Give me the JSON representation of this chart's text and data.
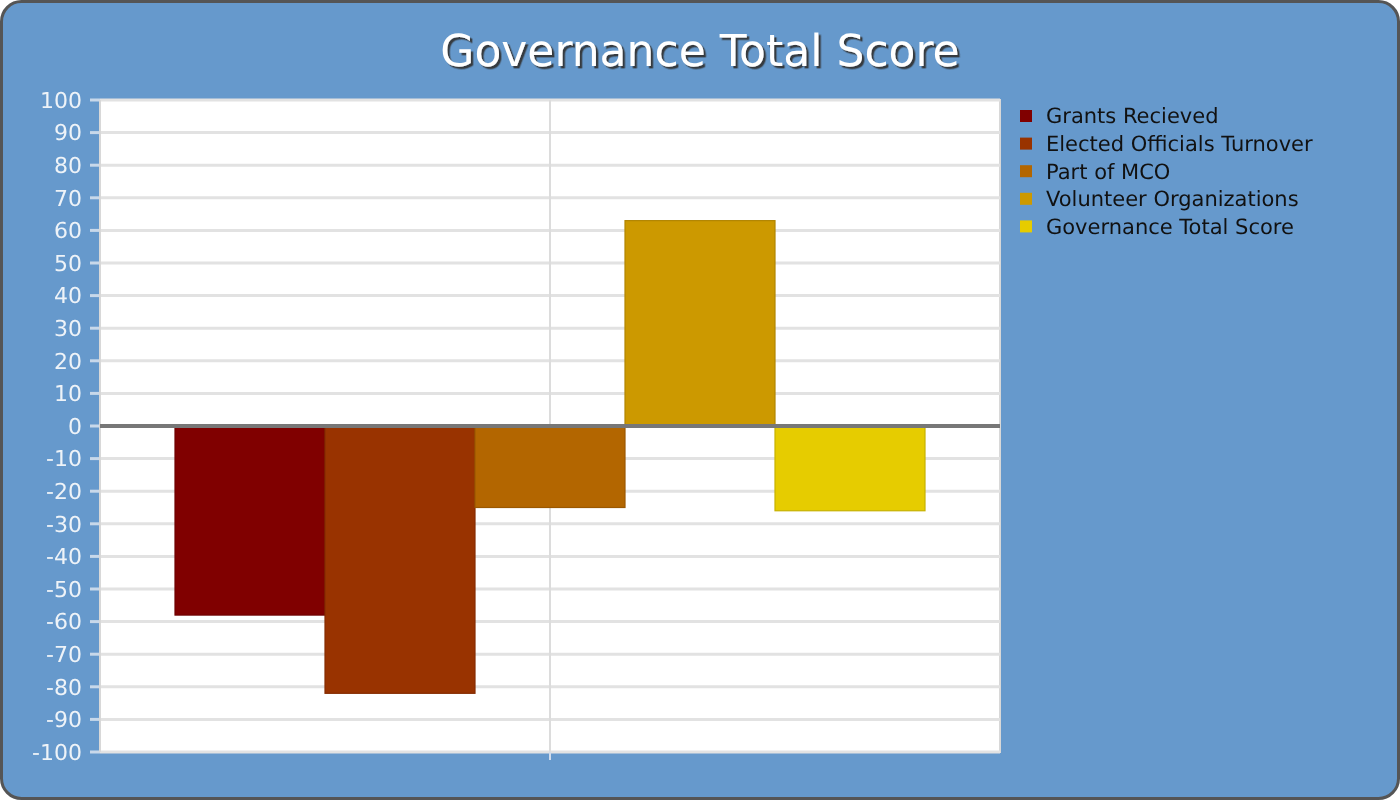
{
  "chart_data": {
    "type": "bar",
    "title": "Governance Total Score",
    "categories": [
      null
    ],
    "series": [
      {
        "name": "Grants Recieved",
        "color": "#800000",
        "values": [
          -58
        ]
      },
      {
        "name": "Elected Officials Turnover",
        "color": "#993300",
        "values": [
          -82
        ]
      },
      {
        "name": "Part of MCO",
        "color": "#b36600",
        "values": [
          -25
        ]
      },
      {
        "name": "Volunteer Organizations",
        "color": "#cc9900",
        "values": [
          63
        ]
      },
      {
        "name": "Governance Total Score",
        "color": "#e6cc00",
        "values": [
          -26
        ]
      }
    ],
    "ylim": [
      -100,
      100
    ],
    "yticks": [
      -100,
      -90,
      -80,
      -70,
      -60,
      -50,
      -40,
      -30,
      -20,
      -10,
      0,
      10,
      20,
      30,
      40,
      50,
      60,
      70,
      80,
      90,
      100
    ],
    "grid": true,
    "legend": "right"
  }
}
